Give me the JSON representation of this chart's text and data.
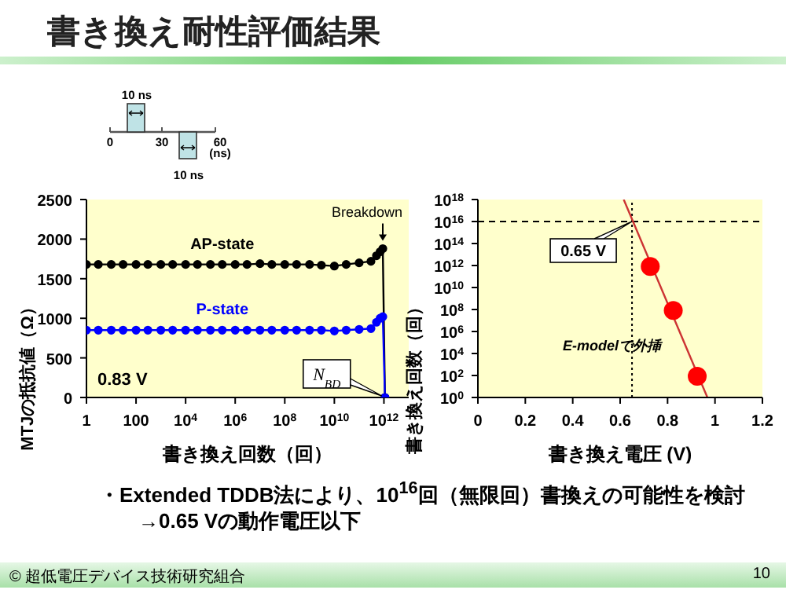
{
  "chart_data": [
    {
      "type": "line",
      "title": "書き換え耐性評価結果",
      "xlabel": "書き換え回数（回）",
      "ylabel": "MTJの抵抗値（Ω）",
      "log": "x",
      "marker": "circle",
      "line_style": "solid",
      "xlim": [
        1,
        10000000000000.0
      ],
      "xticks": [
        1,
        100,
        {
          "value": 10000,
          "label": "10$^{4}$"
        },
        {
          "value": 1000000,
          "label": "10$^{6}$"
        },
        {
          "value": 100000000,
          "label": "10$^{8}$"
        },
        {
          "value": 10000000000,
          "label": "10$^{10}$"
        },
        {
          "value": 1000000000000,
          "label": "10$^{12}$"
        }
      ],
      "ylim": [
        0,
        2500
      ],
      "yticks": [
        0,
        500,
        1000,
        1500,
        2000,
        2500
      ],
      "x": [
        1,
        3,
        10,
        30,
        100,
        300,
        1000,
        3000,
        10000,
        30000,
        100000,
        300000,
        1000000,
        3000000,
        10000000,
        30000000,
        100000000,
        300000000,
        1000000000,
        3000000000,
        10000000000,
        30000000000,
        100000000000,
        300000000000,
        500000000000,
        700000000000,
        900000000000,
        1100000000000
      ],
      "series": [
        {
          "name": "AP-state",
          "color": "#000000",
          "values": [
            1680,
            1680,
            1680,
            1680,
            1680,
            1680,
            1680,
            1680,
            1680,
            1680,
            1680,
            1680,
            1680,
            1680,
            1690,
            1680,
            1680,
            1680,
            1680,
            1670,
            1660,
            1680,
            1700,
            1720,
            1790,
            1840,
            1880,
            0
          ]
        },
        {
          "name": "P-state",
          "color": "#0000ff",
          "values": [
            850,
            850,
            850,
            850,
            850,
            850,
            850,
            850,
            850,
            850,
            850,
            850,
            850,
            850,
            850,
            850,
            850,
            850,
            850,
            850,
            840,
            850,
            860,
            870,
            950,
            1000,
            1020,
            0
          ]
        }
      ],
      "annotations": [
        {
          "text": "Breakdown",
          "x": 900000000000,
          "y": 1880
        },
        "0.83 V",
        {
          "text": "N$_{BD}$",
          "x": 1100000000000,
          "y": 0
        },
        "10 ns",
        "0",
        "30",
        "60",
        "(ns)",
        "10 ns"
      ]
    },
    {
      "type": "scatter",
      "xlabel": "書き換え電圧 (V)",
      "ylabel": "書き換え回数（回）",
      "log": "y",
      "xlim": [
        0,
        1.2
      ],
      "xticks": [
        0,
        0.2,
        0.4,
        0.6,
        0.8,
        1,
        1.2
      ],
      "ylim": [
        1,
        1e+18
      ],
      "yticks": [
        {
          "value": 1,
          "label": "10$^{0}$"
        },
        {
          "value": 100,
          "label": "10$^{2}$"
        },
        {
          "value": 10000,
          "label": "10$^{4}$"
        },
        {
          "value": 1000000,
          "label": "10$^{6}$"
        },
        {
          "value": 100000000,
          "label": "10$^{8}$"
        },
        {
          "value": 10000000000,
          "label": "10$^{10}$"
        },
        {
          "value": 1000000000000,
          "label": "10$^{12}$"
        },
        {
          "value": 100000000000000,
          "label": "10$^{14}$"
        },
        {
          "value": 10000000000000000,
          "label": "10$^{16}$"
        },
        {
          "value": 1000000000000000000,
          "label": "10$^{18}$"
        }
      ],
      "series": [
        {
          "type": "line",
          "color": "#cc3333",
          "marker": "none",
          "x": [
            0.615,
            0.968
          ],
          "values": [
            1e+18,
            1
          ]
        },
        {
          "color": "#ff0000",
          "marker": "circle",
          "x": [
            0.727,
            0.824,
            0.925
          ],
          "values": [
            800000000000,
            80000000,
            85
          ]
        }
      ],
      "ref_lines": [
        {
          "axis": "y",
          "value": 1e+16,
          "line_style": "dashed",
          "color": "#000000"
        },
        {
          "axis": "x",
          "value": 0.65,
          "label": "0.65 V",
          "line_style": "dotted",
          "color": "#000000"
        }
      ],
      "annotations": [
        "E-modelで外挿",
        "・Extended TDDB法により、10$^{16}$回（無限回）書換えの可能性を検討",
        "→0.65 Vの動作電圧以下",
        "© 超低電圧デバイス技術研究組合",
        "10"
      ]
    }
  ]
}
